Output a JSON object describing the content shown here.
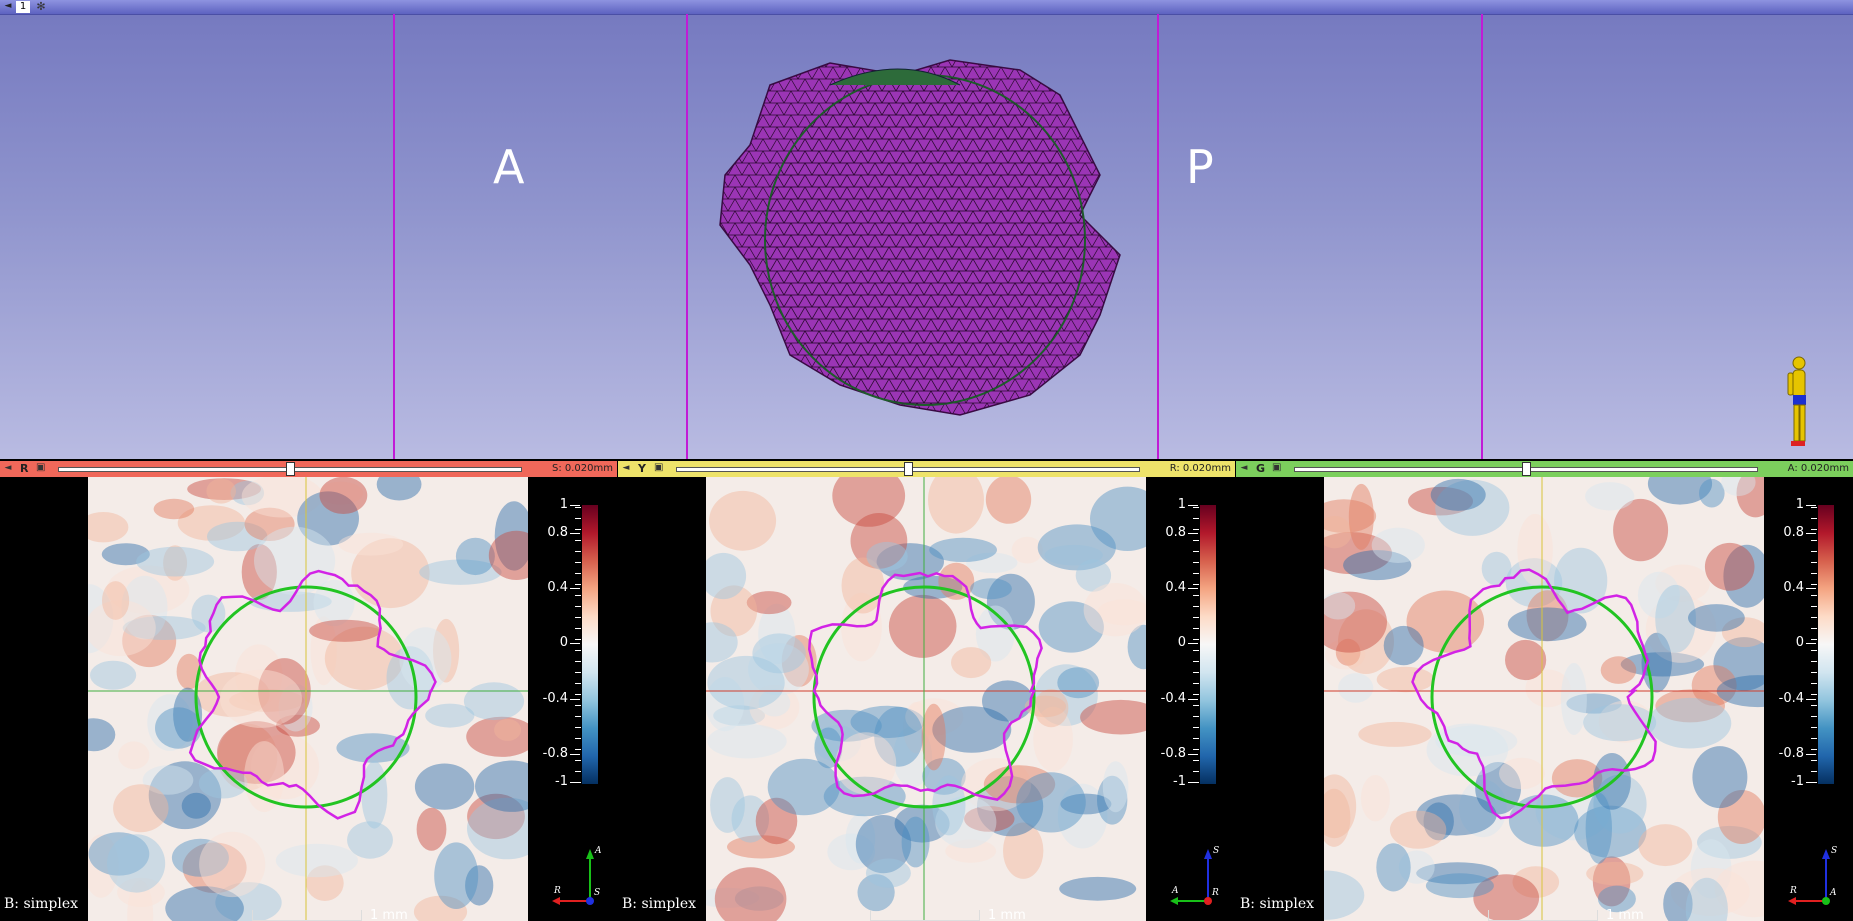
{
  "view3d": {
    "number": "1",
    "label_left": "A",
    "label_right": "P"
  },
  "slices": [
    {
      "name": "R",
      "color": "#f0685a",
      "offset": "S: 0.020mm",
      "slider": 0.5,
      "b_label": "B: simplex",
      "scale": "1 mm",
      "axes": {
        "up": "A",
        "left": "R",
        "center": "S"
      },
      "lines": {
        "h": "#3fae3f",
        "v": "#d8c53a"
      }
    },
    {
      "name": "Y",
      "color": "#eee36a",
      "offset": "R: 0.020mm",
      "slider": 0.5,
      "b_label": "B: simplex",
      "scale": "1 mm",
      "axes": {
        "up": "S",
        "left": "A",
        "center": "R"
      },
      "lines": {
        "h": "#cf3d2d",
        "v": "#3fae3f"
      }
    },
    {
      "name": "G",
      "color": "#7ccf5d",
      "offset": "A: 0.020mm",
      "slider": 0.5,
      "b_label": "B: simplex",
      "scale": "1 mm",
      "axes": {
        "up": "S",
        "left": "R",
        "center": "A"
      },
      "lines": {
        "h": "#cf3d2d",
        "v": "#d8c53a"
      }
    }
  ],
  "colorbar": {
    "labels": [
      "1",
      "0.8",
      "0.4",
      "0",
      "-0.4",
      "-0.8",
      "-1"
    ],
    "values": [
      1,
      0.8,
      0.4,
      0,
      -0.4,
      -0.8,
      -1
    ],
    "colors": [
      "#67001f",
      "#f7f7f7",
      "#053061"
    ]
  }
}
